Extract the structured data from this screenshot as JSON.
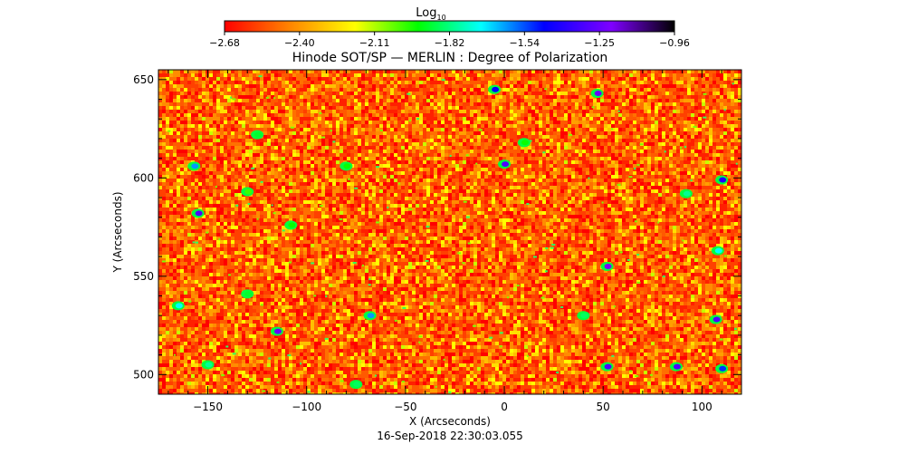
{
  "chart_data": {
    "type": "heatmap",
    "title": "Hinode SOT/SP — MERLIN : Degree of Polarization",
    "xlabel": "X (Arcseconds)",
    "ylabel": "Y (Arcseconds)",
    "timestamp": "16-Sep-2018 22:30:03.055",
    "xlim": [
      -175,
      120
    ],
    "ylim": [
      490,
      655
    ],
    "x_ticks": [
      -150,
      -100,
      -50,
      0,
      50,
      100
    ],
    "x_tick_labels": [
      "−150",
      "−100",
      "−50",
      "0",
      "50",
      "100"
    ],
    "y_ticks": [
      500,
      550,
      600,
      650
    ],
    "y_tick_labels": [
      "500",
      "550",
      "600",
      "650"
    ],
    "colorbar": {
      "label_base": "Log",
      "label_sub": "10",
      "range": [
        -2.68,
        -0.96
      ],
      "tick_labels": [
        "−2.68",
        "−2.40",
        "−2.11",
        "−1.82",
        "−1.54",
        "−1.25",
        "−0.96"
      ],
      "colors": [
        "#ff0000",
        "#ff8000",
        "#ffff00",
        "#00ff00",
        "#00ffff",
        "#0000ff",
        "#7f00ff",
        "#000000"
      ]
    },
    "features": [
      {
        "x": -5,
        "y": 645,
        "value": -1.45
      },
      {
        "x": 47,
        "y": 643,
        "value": -1.25
      },
      {
        "x": -125,
        "y": 622,
        "value": -1.9
      },
      {
        "x": 10,
        "y": 618,
        "value": -1.95
      },
      {
        "x": -157,
        "y": 606,
        "value": -1.6
      },
      {
        "x": -80,
        "y": 606,
        "value": -1.95
      },
      {
        "x": 0,
        "y": 607,
        "value": -1.3
      },
      {
        "x": -130,
        "y": 593,
        "value": -2.0
      },
      {
        "x": 110,
        "y": 599,
        "value": -1.4
      },
      {
        "x": 92,
        "y": 592,
        "value": -1.8
      },
      {
        "x": -155,
        "y": 582,
        "value": -1.3
      },
      {
        "x": -108,
        "y": 576,
        "value": -1.95
      },
      {
        "x": 108,
        "y": 563,
        "value": -1.7
      },
      {
        "x": 52,
        "y": 555,
        "value": -1.2
      },
      {
        "x": -165,
        "y": 535,
        "value": -1.7
      },
      {
        "x": -130,
        "y": 541,
        "value": -1.9
      },
      {
        "x": -68,
        "y": 530,
        "value": -1.6
      },
      {
        "x": -115,
        "y": 522,
        "value": -1.25
      },
      {
        "x": 40,
        "y": 530,
        "value": -1.85
      },
      {
        "x": 107,
        "y": 528,
        "value": -1.3
      },
      {
        "x": -150,
        "y": 505,
        "value": -1.8
      },
      {
        "x": 52,
        "y": 504,
        "value": -1.3
      },
      {
        "x": 87,
        "y": 504,
        "value": -1.3
      },
      {
        "x": 110,
        "y": 503,
        "value": -1.5
      },
      {
        "x": -75,
        "y": 495,
        "value": -1.85
      }
    ]
  }
}
